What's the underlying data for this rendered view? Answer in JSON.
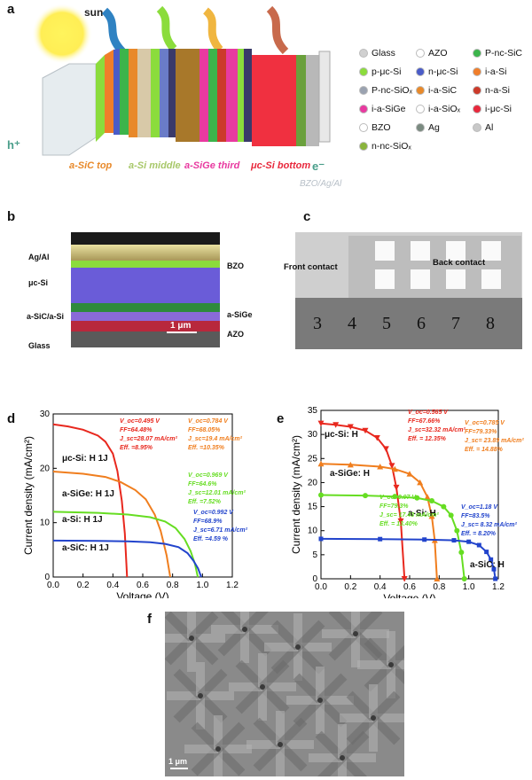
{
  "panel_labels": {
    "a": "a",
    "b": "b",
    "c": "c",
    "d": "d",
    "e": "e",
    "f": "f"
  },
  "panel_a": {
    "sun_label": "sun",
    "h_label": "h⁺",
    "e_label": "e⁻",
    "subcell_labels": [
      "a-SiC top",
      "a-Si middle",
      "a-SiGe third",
      "μc-Si bottom"
    ],
    "back_label": "BZO/Ag/Al",
    "legend": [
      {
        "label": "Glass",
        "color": "#d0d0d0"
      },
      {
        "label": "AZO",
        "color": "#ffffff"
      },
      {
        "label": "P-nc-SiC",
        "color": "#3cb44b"
      },
      {
        "label": "p-μc-Si",
        "color": "#8bdc3c"
      },
      {
        "label": "n-μc-Si",
        "color": "#4a5cc8"
      },
      {
        "label": "i-a-Si",
        "color": "#f07e2a"
      },
      {
        "label": "P-nc-SiOₓ",
        "color": "#9aa2b0"
      },
      {
        "label": "i-a-SiC",
        "color": "#e8892a"
      },
      {
        "label": "n-a-Si",
        "color": "#cc3a2a"
      },
      {
        "label": "i-a-SiGe",
        "color": "#e83aa0"
      },
      {
        "label": "i-a-SiOₓ",
        "color": "#ffffff"
      },
      {
        "label": "i-μc-Si",
        "color": "#e8283c"
      },
      {
        "label": "BZO",
        "color": "#ffffff"
      },
      {
        "label": "Ag",
        "color": "#7a8a80"
      },
      {
        "label": "Al",
        "color": "#c8c8c8"
      },
      {
        "label": "n-nc-SiOₓ",
        "color": "#8ab43c"
      }
    ]
  },
  "panel_b": {
    "left_labels": [
      "Ag/Al",
      "μc-Si",
      "a-SiC/a-Si",
      "Glass"
    ],
    "right_labels": [
      "BZO",
      "a-SiGe",
      "AZO"
    ],
    "scale": "1 μm"
  },
  "panel_c": {
    "front": "Front contact",
    "back": "Back contact",
    "ruler": [
      "3",
      "4",
      "5",
      "6",
      "7",
      "8"
    ]
  },
  "panel_f": {
    "scale": "1 μm"
  },
  "chart_data": [
    {
      "type": "line",
      "panel": "d",
      "xlabel": "Voltage (V)",
      "ylabel": "Current density (mA/cm²)",
      "xlim": [
        0,
        1.2
      ],
      "ylim": [
        0,
        30
      ],
      "xticks": [
        "0.0",
        "0.2",
        "0.4",
        "0.6",
        "0.8",
        "1.0",
        "1.2"
      ],
      "yticks": [
        "0",
        "10",
        "20",
        "30"
      ],
      "series": [
        {
          "name": "μc-Si: H 1J",
          "color": "#e8281e",
          "voc": 0.495,
          "jsc": 28.07,
          "points": [
            [
              0,
              28.1
            ],
            [
              0.1,
              27.7
            ],
            [
              0.2,
              27.1
            ],
            [
              0.3,
              26.0
            ],
            [
              0.35,
              24.9
            ],
            [
              0.4,
              22.7
            ],
            [
              0.43,
              19.5
            ],
            [
              0.46,
              14.0
            ],
            [
              0.48,
              8.0
            ],
            [
              0.495,
              0
            ]
          ],
          "params": {
            "voc": "V_oc=0.495 V",
            "ff": "FF=64.48%",
            "jsc": "J_sc=28.07 mA/cm²",
            "eff": "Eff. =8.95%"
          }
        },
        {
          "name": "a-SiGe: H 1J",
          "color": "#f07e1e",
          "voc": 0.784,
          "jsc": 19.4,
          "points": [
            [
              0,
              19.4
            ],
            [
              0.2,
              19.0
            ],
            [
              0.35,
              18.4
            ],
            [
              0.45,
              17.5
            ],
            [
              0.55,
              16.0
            ],
            [
              0.62,
              14.3
            ],
            [
              0.68,
              11.5
            ],
            [
              0.72,
              8.5
            ],
            [
              0.76,
              4.0
            ],
            [
              0.784,
              0
            ]
          ],
          "params": {
            "voc": "V_oc=0.784 V",
            "ff": "FF=68.05%",
            "jsc": "J_sc=19.4 mA/cm²",
            "eff": "Eff. =10.35%"
          }
        },
        {
          "name": "a-Si: H 1J",
          "color": "#66dd22",
          "voc": 0.969,
          "jsc": 12.01,
          "points": [
            [
              0,
              12.0
            ],
            [
              0.3,
              11.8
            ],
            [
              0.5,
              11.5
            ],
            [
              0.65,
              11.0
            ],
            [
              0.75,
              10.2
            ],
            [
              0.82,
              9.0
            ],
            [
              0.88,
              7.0
            ],
            [
              0.92,
              4.8
            ],
            [
              0.95,
              2.4
            ],
            [
              0.969,
              0
            ]
          ],
          "params": {
            "voc": "V_oc=0.969 V",
            "ff": "FF=64.6%",
            "jsc": "J_sc=12.01 mA/cm²",
            "eff": "Eff. =7.52%"
          }
        },
        {
          "name": "a-SiC: H 1J",
          "color": "#2244cc",
          "voc": 0.992,
          "jsc": 6.71,
          "points": [
            [
              0,
              6.7
            ],
            [
              0.3,
              6.65
            ],
            [
              0.5,
              6.55
            ],
            [
              0.65,
              6.4
            ],
            [
              0.75,
              6.1
            ],
            [
              0.84,
              5.5
            ],
            [
              0.9,
              4.4
            ],
            [
              0.94,
              3.0
            ],
            [
              0.97,
              1.6
            ],
            [
              0.992,
              0
            ]
          ],
          "params": {
            "voc": "V_oc=0.992 V",
            "ff": "FF=68.9%",
            "jsc": "J_sc=6.71 mA/cm²",
            "eff": "Eff. =4.59 %"
          }
        }
      ]
    },
    {
      "type": "line",
      "panel": "e",
      "xlabel": "Voltage (V)",
      "ylabel": "Current density (mA/cm²)",
      "xlim": [
        0,
        1.2
      ],
      "ylim": [
        0,
        35
      ],
      "xticks": [
        "0.0",
        "0.2",
        "0.4",
        "0.6",
        "0.8",
        "1.0",
        "1.2"
      ],
      "yticks": [
        "0",
        "5",
        "10",
        "15",
        "20",
        "25",
        "30",
        "35"
      ],
      "series": [
        {
          "name": "μc-Si: H",
          "color": "#e8281e",
          "marker": "triangle-down",
          "points": [
            [
              0,
              32.3
            ],
            [
              0.1,
              32.0
            ],
            [
              0.2,
              31.6
            ],
            [
              0.3,
              30.8
            ],
            [
              0.38,
              29.3
            ],
            [
              0.44,
              27.0
            ],
            [
              0.48,
              23.5
            ],
            [
              0.51,
              19.0
            ],
            [
              0.54,
              12.0
            ],
            [
              0.565,
              0
            ]
          ],
          "params": {
            "voc": "V_oc=0.565 V",
            "ff": "FF=67.66%",
            "jsc": "J_sc=32.32 mA/cm²",
            "eff": "Eff. = 12.35%"
          }
        },
        {
          "name": "a-SiGe: H",
          "color": "#f07e1e",
          "marker": "triangle-up",
          "points": [
            [
              0,
              23.9
            ],
            [
              0.2,
              23.7
            ],
            [
              0.4,
              23.3
            ],
            [
              0.5,
              22.8
            ],
            [
              0.6,
              21.8
            ],
            [
              0.67,
              20.0
            ],
            [
              0.72,
              17.0
            ],
            [
              0.75,
              13.0
            ],
            [
              0.77,
              8.0
            ],
            [
              0.785,
              0
            ]
          ],
          "params": {
            "voc": "V_oc=0.785 V",
            "ff": "FF=79.33%",
            "jsc": "J_sc= 23.89 mA/cm²",
            "eff": "Eff. = 14.88%"
          }
        },
        {
          "name": "a-Si: H",
          "color": "#66dd22",
          "marker": "circle",
          "points": [
            [
              0,
              17.4
            ],
            [
              0.3,
              17.3
            ],
            [
              0.5,
              17.1
            ],
            [
              0.65,
              16.8
            ],
            [
              0.75,
              16.2
            ],
            [
              0.83,
              15.0
            ],
            [
              0.88,
              13.2
            ],
            [
              0.92,
              10.0
            ],
            [
              0.95,
              5.5
            ],
            [
              0.97,
              0
            ]
          ],
          "params": {
            "voc": "V_oc=0.97 V",
            "ff": "FF=79.3%",
            "jsc": "J_sc= 17.43 mA/cm²",
            "eff": "Eff. = 13.40%"
          }
        },
        {
          "name": "a-SiC: H",
          "color": "#2244cc",
          "marker": "square",
          "points": [
            [
              0,
              8.3
            ],
            [
              0.4,
              8.25
            ],
            [
              0.7,
              8.15
            ],
            [
              0.9,
              8.0
            ],
            [
              1.0,
              7.7
            ],
            [
              1.07,
              7.0
            ],
            [
              1.12,
              5.6
            ],
            [
              1.15,
              4.0
            ],
            [
              1.17,
              2.0
            ],
            [
              1.18,
              0
            ]
          ],
          "params": {
            "voc": "V_oc=1.18 V",
            "ff": "FF=83.5%",
            "jsc": "J_sc= 8.32 mA/cm²",
            "eff": "Eff. = 8.20%"
          }
        }
      ]
    }
  ]
}
